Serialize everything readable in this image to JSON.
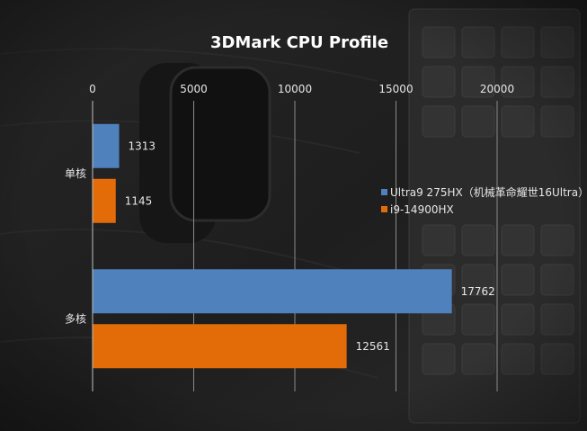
{
  "chart_data": {
    "type": "bar",
    "orientation": "horizontal",
    "title": "3DMark CPU Profile",
    "categories": [
      "单核",
      "多核"
    ],
    "series": [
      {
        "name": "Ultra9 275HX（机械革命耀世16Ultra）",
        "color": "#4f81bd",
        "values": [
          1313,
          17762
        ]
      },
      {
        "name": "i9-14900HX",
        "color": "#e36c09",
        "values": [
          1145,
          12561
        ]
      }
    ],
    "xlim": [
      0,
      20000
    ],
    "xticks": [
      "0",
      "5000",
      "10000",
      "15000",
      "20000"
    ],
    "grid": true,
    "legend_position": "right"
  }
}
